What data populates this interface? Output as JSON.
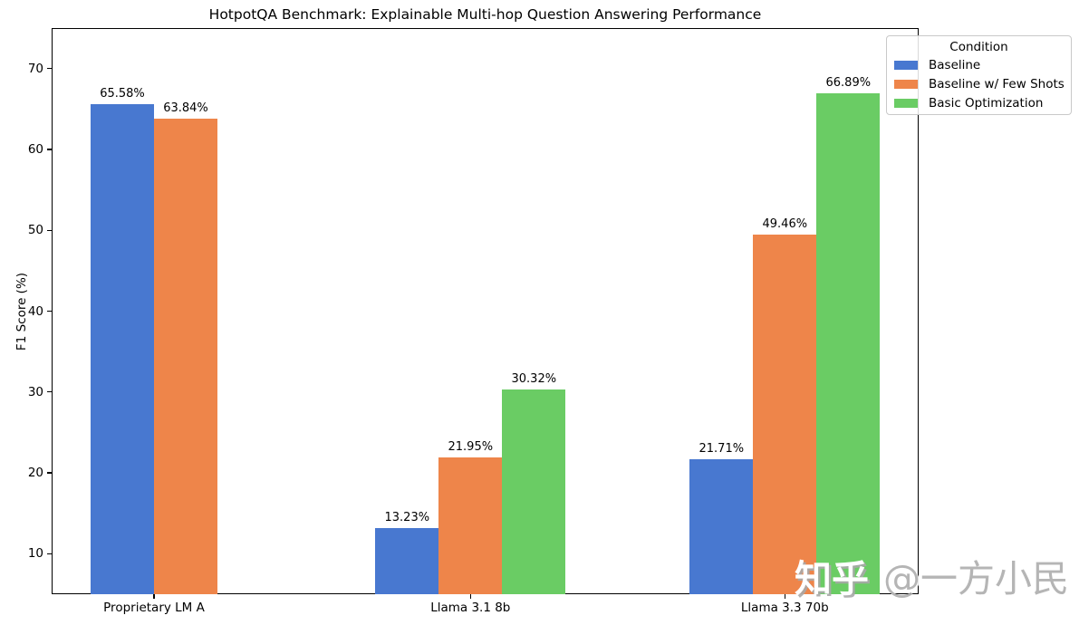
{
  "chart_data": {
    "type": "bar",
    "title": "HotpotQA Benchmark: Explainable Multi-hop Question Answering Performance",
    "xlabel": "",
    "ylabel": "F1 Score (%)",
    "categories": [
      "Proprietary LM A",
      "Llama 3.1 8b",
      "Llama 3.3 70b"
    ],
    "series": [
      {
        "name": "Baseline",
        "color": "#4878d0",
        "values": [
          65.58,
          13.23,
          21.71
        ]
      },
      {
        "name": "Baseline w/ Few Shots",
        "color": "#ee854a",
        "values": [
          63.84,
          21.95,
          49.46
        ]
      },
      {
        "name": "Basic Optimization",
        "color": "#6acc64",
        "values": [
          null,
          30.32,
          66.89
        ]
      }
    ],
    "bar_labels": {
      "Baseline": [
        "65.58%",
        "13.23%",
        "21.71%"
      ],
      "Baseline w/ Few Shots": [
        "63.84%",
        "21.95%",
        "49.46%"
      ],
      "Basic Optimization": [
        null,
        "30.32%",
        "66.89%"
      ],
      "format": "{:.2f}%"
    },
    "legend": {
      "title": "Condition",
      "position": "upper right"
    },
    "ylim": [
      5,
      75
    ],
    "yticks": [
      10,
      20,
      30,
      40,
      50,
      60,
      70
    ],
    "grid": false,
    "background": "#ffffff"
  },
  "watermark": {
    "brand": "知乎",
    "handle": "@一方小民"
  }
}
